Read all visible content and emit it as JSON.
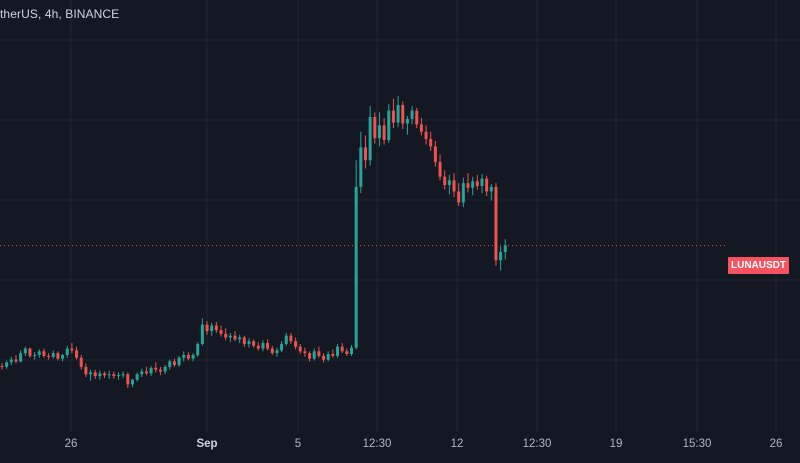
{
  "header": {
    "symbol_title": "therUS, 4h, BINANCE"
  },
  "price_tag": {
    "label": "LUNAUSDT",
    "color": "#f7525f"
  },
  "colors": {
    "up": "#26a69a",
    "down": "#ef5350",
    "background": "#141823",
    "grid": "#1f2430"
  },
  "chart_data": {
    "type": "candlestick",
    "title": "therUS, 4h, BINANCE",
    "x_ticks": [
      "26",
      "Sep",
      "5",
      "12:30",
      "12",
      "12:30",
      "19",
      "15:30",
      "26"
    ],
    "current_price_label": "LUNAUSDT",
    "grid": true,
    "candles": [
      [
        0.2,
        0.203,
        0.196,
        0.199
      ],
      [
        0.199,
        0.206,
        0.197,
        0.204
      ],
      [
        0.204,
        0.21,
        0.201,
        0.207
      ],
      [
        0.207,
        0.212,
        0.203,
        0.205
      ],
      [
        0.205,
        0.217,
        0.204,
        0.214
      ],
      [
        0.214,
        0.221,
        0.211,
        0.219
      ],
      [
        0.219,
        0.22,
        0.209,
        0.211
      ],
      [
        0.211,
        0.215,
        0.207,
        0.212
      ],
      [
        0.212,
        0.218,
        0.209,
        0.216
      ],
      [
        0.216,
        0.219,
        0.209,
        0.211
      ],
      [
        0.211,
        0.214,
        0.207,
        0.21
      ],
      [
        0.21,
        0.217,
        0.208,
        0.214
      ],
      [
        0.214,
        0.216,
        0.206,
        0.208
      ],
      [
        0.208,
        0.213,
        0.205,
        0.212
      ],
      [
        0.212,
        0.222,
        0.209,
        0.219
      ],
      [
        0.219,
        0.225,
        0.214,
        0.217
      ],
      [
        0.217,
        0.221,
        0.207,
        0.209
      ],
      [
        0.209,
        0.212,
        0.196,
        0.199
      ],
      [
        0.199,
        0.203,
        0.188,
        0.191
      ],
      [
        0.191,
        0.196,
        0.184,
        0.193
      ],
      [
        0.193,
        0.196,
        0.186,
        0.189
      ],
      [
        0.189,
        0.195,
        0.185,
        0.192
      ],
      [
        0.192,
        0.194,
        0.187,
        0.19
      ],
      [
        0.19,
        0.195,
        0.186,
        0.191
      ],
      [
        0.191,
        0.194,
        0.186,
        0.189
      ],
      [
        0.189,
        0.193,
        0.185,
        0.19
      ],
      [
        0.19,
        0.194,
        0.187,
        0.191
      ],
      [
        0.191,
        0.193,
        0.176,
        0.18
      ],
      [
        0.18,
        0.186,
        0.177,
        0.185
      ],
      [
        0.185,
        0.193,
        0.183,
        0.191
      ],
      [
        0.191,
        0.197,
        0.188,
        0.194
      ],
      [
        0.194,
        0.199,
        0.19,
        0.192
      ],
      [
        0.192,
        0.2,
        0.189,
        0.198
      ],
      [
        0.198,
        0.204,
        0.193,
        0.196
      ],
      [
        0.196,
        0.199,
        0.19,
        0.194
      ],
      [
        0.194,
        0.201,
        0.191,
        0.199
      ],
      [
        0.199,
        0.207,
        0.196,
        0.205
      ],
      [
        0.205,
        0.208,
        0.199,
        0.201
      ],
      [
        0.201,
        0.211,
        0.199,
        0.209
      ],
      [
        0.209,
        0.216,
        0.205,
        0.212
      ],
      [
        0.212,
        0.215,
        0.206,
        0.208
      ],
      [
        0.208,
        0.214,
        0.205,
        0.212
      ],
      [
        0.212,
        0.226,
        0.21,
        0.224
      ],
      [
        0.224,
        0.252,
        0.222,
        0.245
      ],
      [
        0.245,
        0.249,
        0.234,
        0.238
      ],
      [
        0.238,
        0.247,
        0.233,
        0.244
      ],
      [
        0.244,
        0.248,
        0.236,
        0.239
      ],
      [
        0.239,
        0.244,
        0.232,
        0.235
      ],
      [
        0.235,
        0.241,
        0.228,
        0.231
      ],
      [
        0.231,
        0.236,
        0.226,
        0.233
      ],
      [
        0.233,
        0.238,
        0.227,
        0.229
      ],
      [
        0.229,
        0.234,
        0.225,
        0.231
      ],
      [
        0.231,
        0.233,
        0.221,
        0.224
      ],
      [
        0.224,
        0.23,
        0.22,
        0.227
      ],
      [
        0.227,
        0.229,
        0.22,
        0.222
      ],
      [
        0.222,
        0.226,
        0.217,
        0.219
      ],
      [
        0.219,
        0.228,
        0.216,
        0.225
      ],
      [
        0.225,
        0.229,
        0.217,
        0.219
      ],
      [
        0.219,
        0.222,
        0.212,
        0.214
      ],
      [
        0.214,
        0.22,
        0.21,
        0.217
      ],
      [
        0.217,
        0.227,
        0.215,
        0.224
      ],
      [
        0.224,
        0.236,
        0.222,
        0.233
      ],
      [
        0.233,
        0.236,
        0.224,
        0.227
      ],
      [
        0.227,
        0.231,
        0.218,
        0.221
      ],
      [
        0.221,
        0.224,
        0.213,
        0.216
      ],
      [
        0.216,
        0.22,
        0.21,
        0.214
      ],
      [
        0.214,
        0.216,
        0.205,
        0.208
      ],
      [
        0.208,
        0.219,
        0.206,
        0.216
      ],
      [
        0.216,
        0.221,
        0.209,
        0.211
      ],
      [
        0.211,
        0.214,
        0.204,
        0.207
      ],
      [
        0.207,
        0.216,
        0.205,
        0.213
      ],
      [
        0.213,
        0.218,
        0.209,
        0.211
      ],
      [
        0.211,
        0.224,
        0.209,
        0.221
      ],
      [
        0.221,
        0.225,
        0.214,
        0.216
      ],
      [
        0.216,
        0.219,
        0.211,
        0.213
      ],
      [
        0.213,
        0.223,
        0.211,
        0.22
      ],
      [
        0.22,
        0.424,
        0.218,
        0.395
      ],
      [
        0.395,
        0.455,
        0.388,
        0.438
      ],
      [
        0.438,
        0.451,
        0.415,
        0.424
      ],
      [
        0.424,
        0.483,
        0.418,
        0.471
      ],
      [
        0.471,
        0.476,
        0.442,
        0.448
      ],
      [
        0.448,
        0.476,
        0.439,
        0.462
      ],
      [
        0.462,
        0.47,
        0.441,
        0.446
      ],
      [
        0.446,
        0.485,
        0.443,
        0.478
      ],
      [
        0.478,
        0.491,
        0.459,
        0.465
      ],
      [
        0.465,
        0.494,
        0.46,
        0.484
      ],
      [
        0.484,
        0.488,
        0.458,
        0.464
      ],
      [
        0.464,
        0.472,
        0.452,
        0.469
      ],
      [
        0.469,
        0.483,
        0.463,
        0.478
      ],
      [
        0.478,
        0.481,
        0.459,
        0.463
      ],
      [
        0.463,
        0.47,
        0.451,
        0.455
      ],
      [
        0.455,
        0.462,
        0.441,
        0.447
      ],
      [
        0.447,
        0.455,
        0.434,
        0.439
      ],
      [
        0.439,
        0.445,
        0.417,
        0.422
      ],
      [
        0.422,
        0.43,
        0.402,
        0.406
      ],
      [
        0.406,
        0.413,
        0.392,
        0.397
      ],
      [
        0.397,
        0.408,
        0.387,
        0.402
      ],
      [
        0.402,
        0.41,
        0.384,
        0.39
      ],
      [
        0.39,
        0.399,
        0.374,
        0.378
      ],
      [
        0.378,
        0.405,
        0.373,
        0.399
      ],
      [
        0.399,
        0.41,
        0.389,
        0.394
      ],
      [
        0.394,
        0.406,
        0.386,
        0.401
      ],
      [
        0.401,
        0.408,
        0.392,
        0.396
      ],
      [
        0.396,
        0.409,
        0.388,
        0.404
      ],
      [
        0.404,
        0.407,
        0.385,
        0.39
      ],
      [
        0.39,
        0.398,
        0.38,
        0.395
      ],
      [
        0.395,
        0.399,
        0.309,
        0.315
      ],
      [
        0.315,
        0.33,
        0.304,
        0.324
      ],
      [
        0.324,
        0.338,
        0.316,
        0.331
      ]
    ],
    "last_close": 0.331
  }
}
